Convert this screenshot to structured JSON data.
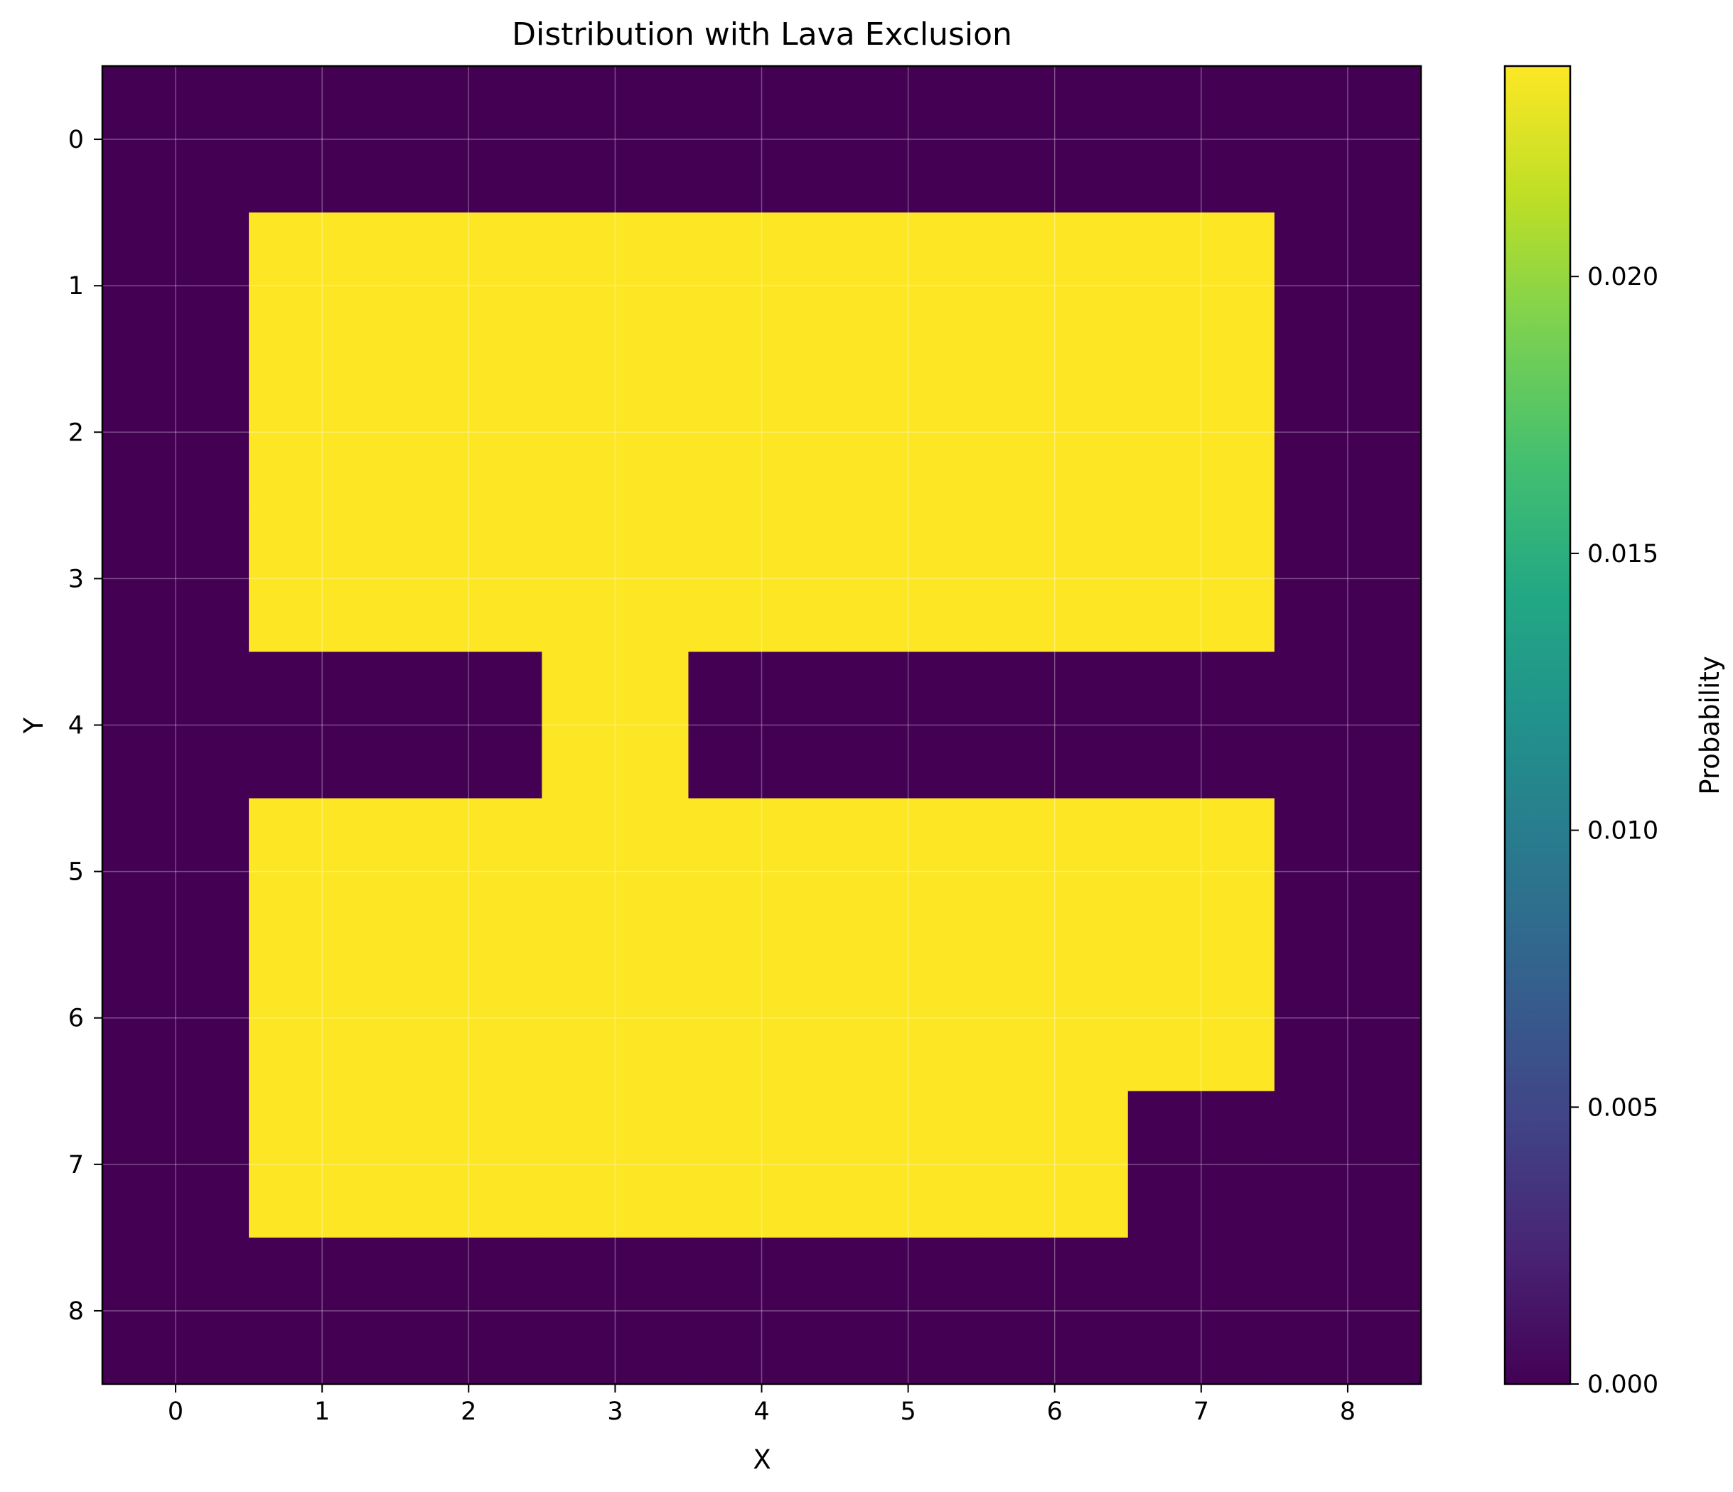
{
  "chart_data": {
    "type": "heatmap",
    "title": "Distribution with Lava Exclusion",
    "xlabel": "X",
    "ylabel": "Y",
    "x_ticks": [
      "0",
      "1",
      "2",
      "3",
      "4",
      "5",
      "6",
      "7",
      "8"
    ],
    "y_ticks": [
      "0",
      "1",
      "2",
      "3",
      "4",
      "5",
      "6",
      "7",
      "8"
    ],
    "colorbar": {
      "label": "Probability",
      "vmin": 0.0,
      "vmax": 0.0238,
      "ticks": [
        "0.000",
        "0.005",
        "0.010",
        "0.015",
        "0.020"
      ],
      "tick_values": [
        0.0,
        0.005,
        0.01,
        0.015,
        0.02
      ],
      "colormap": "viridis"
    },
    "grid": true,
    "rows": [
      [
        0,
        0,
        0,
        0,
        0,
        0,
        0,
        0,
        0
      ],
      [
        0,
        0.0238,
        0.0238,
        0.0238,
        0.0238,
        0.0238,
        0.0238,
        0.0238,
        0
      ],
      [
        0,
        0.0238,
        0.0238,
        0.0238,
        0.0238,
        0.0238,
        0.0238,
        0.0238,
        0
      ],
      [
        0,
        0.0238,
        0.0238,
        0.0238,
        0.0238,
        0.0238,
        0.0238,
        0.0238,
        0
      ],
      [
        0,
        0,
        0,
        0.0238,
        0,
        0,
        0,
        0,
        0
      ],
      [
        0,
        0.0238,
        0.0238,
        0.0238,
        0.0238,
        0.0238,
        0.0238,
        0.0238,
        0
      ],
      [
        0,
        0.0238,
        0.0238,
        0.0238,
        0.0238,
        0.0238,
        0.0238,
        0.0238,
        0
      ],
      [
        0,
        0.0238,
        0.0238,
        0.0238,
        0.0238,
        0.0238,
        0.0238,
        0,
        0
      ],
      [
        0,
        0,
        0,
        0,
        0,
        0,
        0,
        0,
        0
      ]
    ]
  }
}
